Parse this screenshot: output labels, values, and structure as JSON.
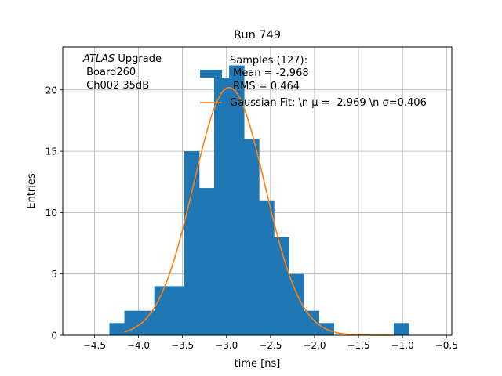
{
  "chart_data": {
    "type": "bar",
    "title": "Run 749",
    "xlabel": "time [ns]",
    "ylabel": "Entries",
    "xlim": [
      -4.86,
      -0.44
    ],
    "ylim": [
      0,
      23.5
    ],
    "grid": true,
    "xticks": [
      -4.5,
      -4.0,
      -3.5,
      -3.0,
      -2.5,
      -2.0,
      -1.5,
      -1.0,
      -0.5
    ],
    "xtick_labels": [
      "−4.5",
      "−4.0",
      "−3.5",
      "−3.0",
      "−2.5",
      "−2.0",
      "−1.5",
      "−1.0",
      "−0.5"
    ],
    "yticks": [
      0,
      5,
      10,
      15,
      20
    ],
    "ytick_labels": [
      "0",
      "5",
      "10",
      "15",
      "20"
    ],
    "histogram": {
      "name": "Samples",
      "color": "#1f77b4",
      "bin_edges": [
        -4.33,
        -4.16,
        -3.99,
        -3.82,
        -3.65,
        -3.48,
        -3.31,
        -3.14,
        -2.97,
        -2.8,
        -2.63,
        -2.46,
        -2.29,
        -2.12,
        -1.95,
        -1.78,
        -1.61,
        -1.44,
        -1.27,
        -1.1,
        -0.93
      ],
      "counts": [
        1,
        2,
        2,
        4,
        4,
        15,
        12,
        21,
        22,
        16,
        11,
        8,
        5,
        2,
        1,
        0,
        0,
        0,
        0,
        1
      ]
    },
    "fit": {
      "name": "Gaussian Fit",
      "color": "#ff7f0e",
      "mu": -2.969,
      "sigma": 0.406,
      "amplitude": 20.2,
      "x_range": [
        -4.16,
        -1.1
      ]
    },
    "annotation_lines": [
      "ATLAS",
      " Upgrade",
      " Board260",
      " Ch002 35dB"
    ],
    "legend": {
      "location": "top-right",
      "entries": [
        {
          "kind": "patch",
          "lines": [
            "Samples (127):",
            " Mean = -2.968",
            " RMS = 0.464"
          ]
        },
        {
          "kind": "line",
          "lines": [
            "Gaussian Fit: \\n μ = -2.969 \\n σ=0.406"
          ]
        }
      ]
    }
  }
}
